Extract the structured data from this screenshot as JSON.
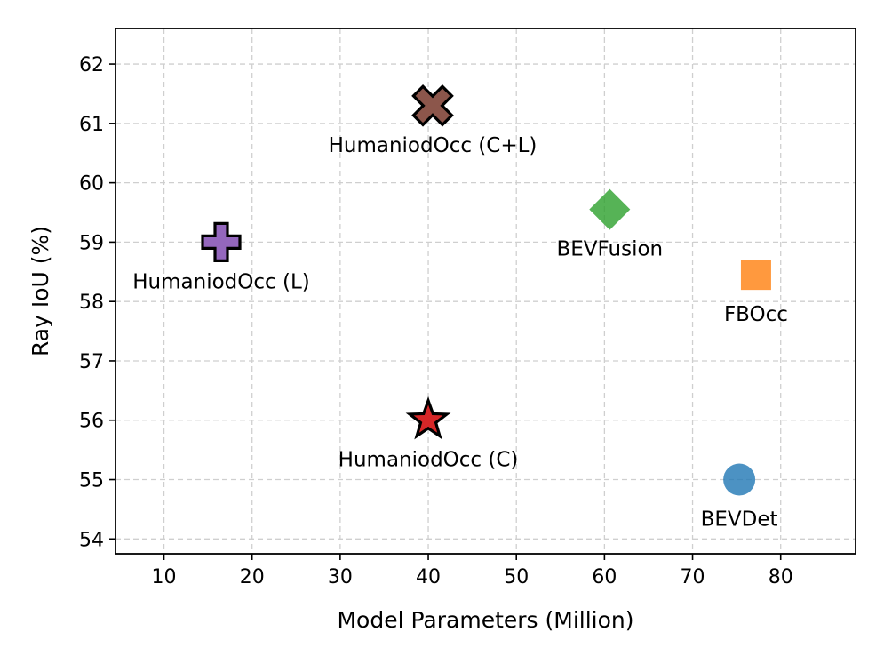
{
  "chart_data": {
    "type": "scatter",
    "title": "",
    "xlabel": "Model Parameters (Million)",
    "ylabel": "Ray IoU (%)",
    "xlim": [
      4.5,
      88.5
    ],
    "ylim": [
      53.75,
      62.6
    ],
    "xticks": [
      10,
      20,
      30,
      40,
      50,
      60,
      70,
      80
    ],
    "yticks": [
      54,
      55,
      56,
      57,
      58,
      59,
      60,
      61,
      62
    ],
    "grid": true,
    "points": [
      {
        "name": "BEVDet",
        "x": 75.3,
        "y": 55.0,
        "marker": "circle",
        "color": "#1f77b4",
        "outlined": false,
        "label_pos": "below"
      },
      {
        "name": "FBOcc",
        "x": 77.2,
        "y": 58.45,
        "marker": "square",
        "color": "#ff7f0e",
        "outlined": false,
        "label_pos": "below"
      },
      {
        "name": "BEVFusion",
        "x": 60.6,
        "y": 59.55,
        "marker": "diamond",
        "color": "#2ca02c",
        "outlined": false,
        "label_pos": "below"
      },
      {
        "name": "HumaniodOcc (C)",
        "x": 40.0,
        "y": 56.0,
        "marker": "star",
        "color": "#d62728",
        "outlined": true,
        "label_pos": "below"
      },
      {
        "name": "HumaniodOcc (L)",
        "x": 16.5,
        "y": 59.0,
        "marker": "plus",
        "color": "#9467bd",
        "outlined": true,
        "label_pos": "below"
      },
      {
        "name": "HumaniodOcc (C+L)",
        "x": 40.5,
        "y": 61.3,
        "marker": "cross",
        "color": "#8c564b",
        "outlined": true,
        "label_pos": "below"
      }
    ]
  }
}
